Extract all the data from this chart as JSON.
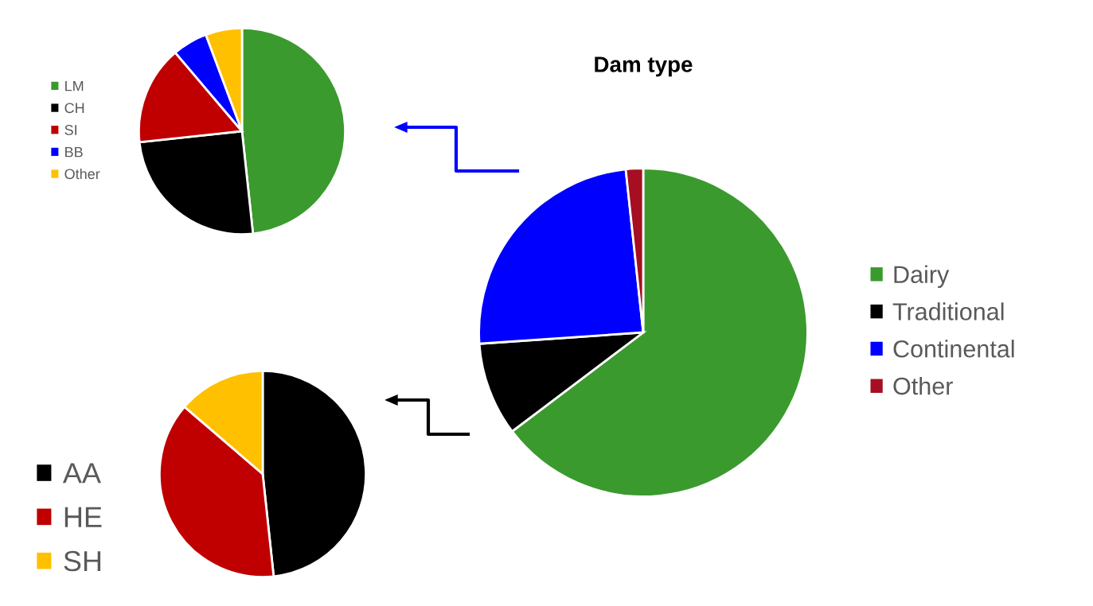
{
  "chart_data": [
    {
      "type": "pie",
      "categories": [
        "LM",
        "CH",
        "SI",
        "BB",
        "Other"
      ],
      "values": [
        48.3,
        25.0,
        15.5,
        5.5,
        5.7
      ],
      "colors": [
        "#3a9a2e",
        "#000000",
        "#c00000",
        "#0000ff",
        "#ffc000"
      ],
      "legend": "left"
    },
    {
      "type": "pie",
      "title": "Dam type",
      "categories": [
        "Dairy",
        "Traditional",
        "Continental",
        "Other"
      ],
      "values": [
        64.7,
        9.2,
        24.4,
        1.7
      ],
      "colors": [
        "#3a9a2e",
        "#000000",
        "#0000ff",
        "#a50f21"
      ],
      "legend": "right"
    },
    {
      "type": "pie",
      "categories": [
        "AA",
        "HE",
        "SH"
      ],
      "values": [
        48.3,
        38.0,
        13.7
      ],
      "colors": [
        "#000000",
        "#c00000",
        "#ffc000"
      ],
      "legend": "bottom left"
    }
  ]
}
